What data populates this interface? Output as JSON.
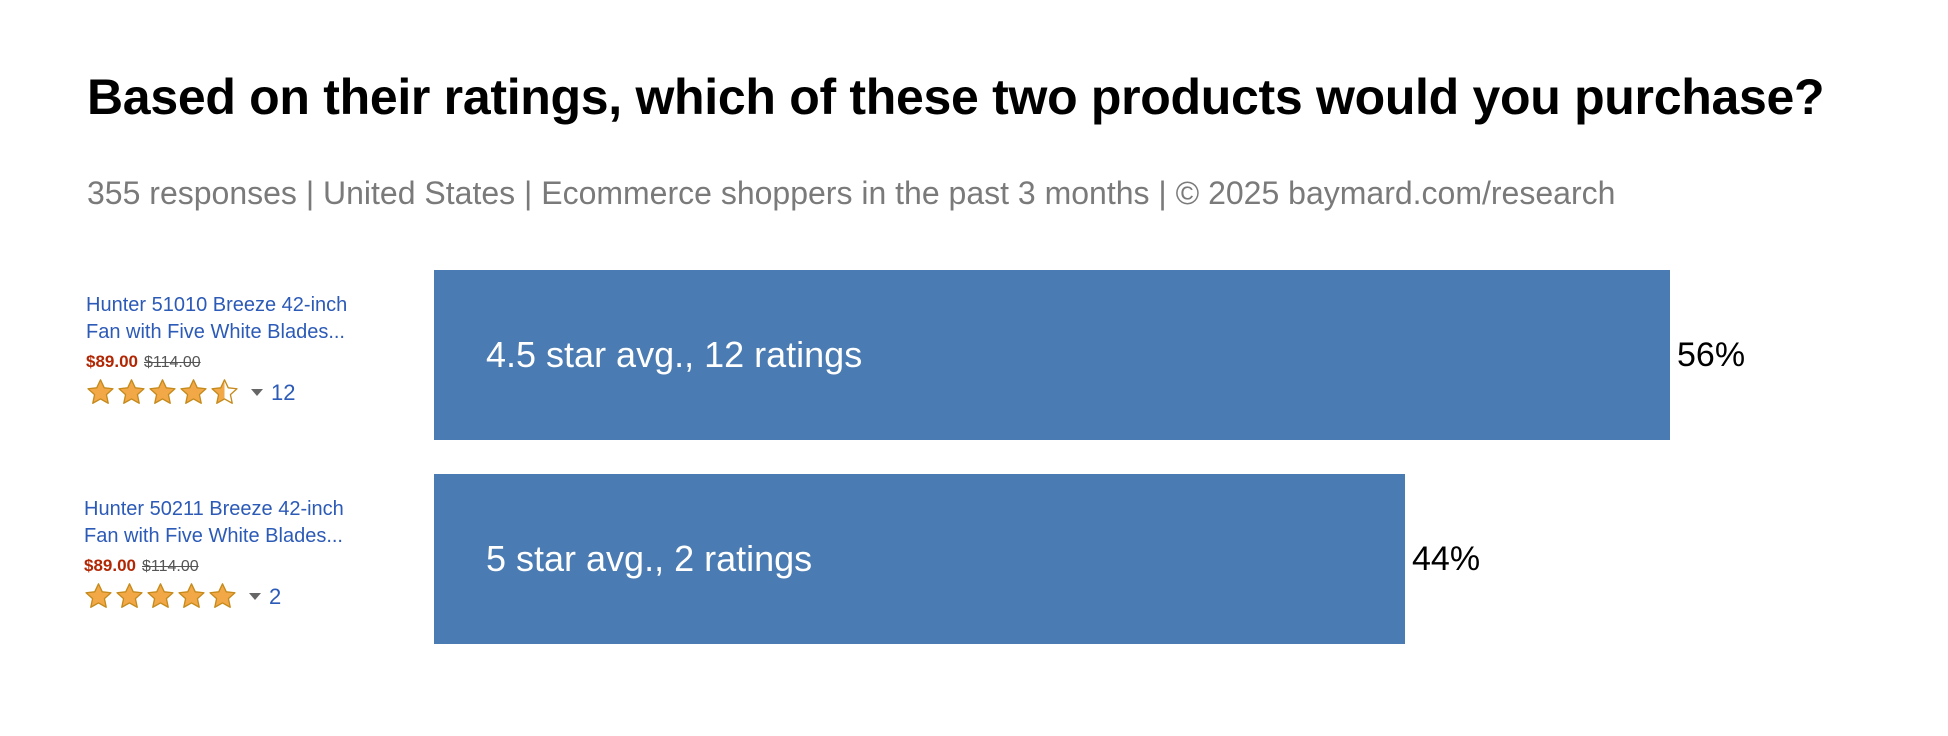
{
  "title": "Based on their ratings, which of these two products would you purchase?",
  "subtitle": "355 responses  |  United States  |  Ecommerce shoppers in the past 3 months | © 2025 baymard.com/research",
  "colors": {
    "bar": "#4a7bb2",
    "price": "#b12704",
    "link": "#2c5ab7",
    "star": "#f3a847"
  },
  "chart_data": {
    "type": "bar",
    "orientation": "horizontal",
    "title": "Based on their ratings, which of these two products would you purchase?",
    "categories": [
      "4.5 star avg., 12 ratings",
      "5 star avg., 2 ratings"
    ],
    "values": [
      56,
      44
    ],
    "value_labels": [
      "56%",
      "44%"
    ],
    "xlim": [
      0,
      56
    ],
    "grid": false
  },
  "products": [
    {
      "name_line1": "Hunter 51010 Breeze 42-inch",
      "name_line2": "Fan with Five White Blades...",
      "price": "$89.00",
      "old_price": "$114.00",
      "rating": 4.5,
      "review_count": "12"
    },
    {
      "name_line1": "Hunter 50211 Breeze 42-inch",
      "name_line2": "Fan with Five White Blades...",
      "price": "$89.00",
      "old_price": "$114.00",
      "rating": 5,
      "review_count": "2"
    }
  ]
}
